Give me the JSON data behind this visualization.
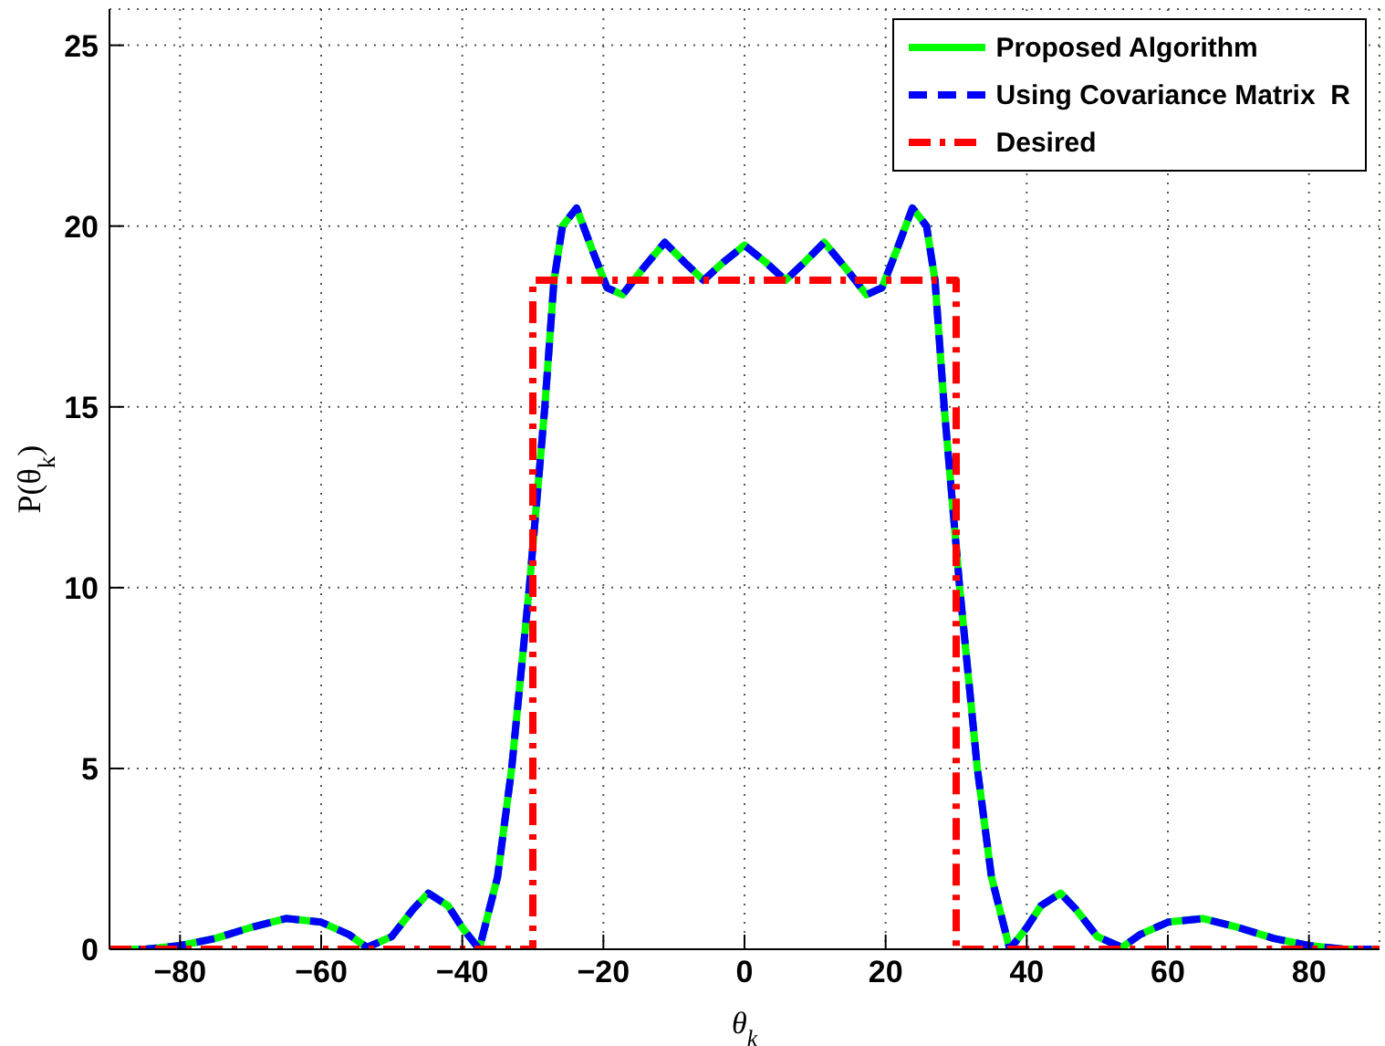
{
  "chart_data": {
    "type": "line",
    "xlabel": "θ$_{k}$",
    "ylabel": "P(θ$_{k}$)",
    "xlim": [
      -90,
      90
    ],
    "xticks": [
      -80,
      -60,
      -40,
      -20,
      0,
      20,
      40,
      60,
      80
    ],
    "ylim": [
      0,
      26
    ],
    "yticks": [
      0,
      5,
      10,
      15,
      20,
      25
    ],
    "grid": true,
    "legend": "top right",
    "marker": "none",
    "series": [
      {
        "name": "Proposed Algorithm",
        "color": "#00ff00",
        "line_style": "solid",
        "x": [
          -90,
          -85,
          -80,
          -75,
          -70,
          -65,
          -60,
          -56,
          -53.5,
          -50,
          -47,
          -44.8,
          -42,
          -40,
          -37.6,
          -35,
          -33,
          -30.5,
          -28.3,
          -27,
          -25.8,
          -23.8,
          -21.5,
          -19.5,
          -17.3,
          -14.5,
          -11.3,
          -8.5,
          -5.8,
          -3,
          0,
          3,
          5.8,
          8.5,
          11.3,
          14.5,
          17.3,
          19.5,
          21.5,
          23.8,
          25.8,
          27,
          28.3,
          30.5,
          33,
          35,
          37.6,
          40,
          42,
          44.8,
          47,
          50,
          53.5,
          56,
          60,
          65,
          70,
          75,
          80,
          85,
          90
        ],
        "values": [
          0,
          0,
          0.1,
          0.3,
          0.6,
          0.85,
          0.75,
          0.4,
          0.05,
          0.35,
          1.1,
          1.55,
          1.2,
          0.6,
          0,
          2,
          5,
          10,
          15,
          18.5,
          20,
          20.5,
          19.3,
          18.3,
          18.1,
          18.8,
          19.55,
          19,
          18.5,
          19,
          19.47,
          19,
          18.5,
          19,
          19.55,
          18.8,
          18.1,
          18.3,
          19.3,
          20.5,
          20,
          18.5,
          15,
          10,
          5,
          2,
          0,
          0.6,
          1.2,
          1.55,
          1.1,
          0.35,
          0.05,
          0.4,
          0.75,
          0.85,
          0.6,
          0.3,
          0.1,
          0,
          0
        ]
      },
      {
        "name": "Using Covariance Matrix  R",
        "color": "#0000ff",
        "line_style": "dashed",
        "x": [
          -90,
          -85,
          -80,
          -75,
          -70,
          -65,
          -60,
          -56,
          -53.5,
          -50,
          -47,
          -44.8,
          -42,
          -40,
          -37.6,
          -35,
          -33,
          -30.5,
          -28.3,
          -27,
          -25.8,
          -23.8,
          -21.5,
          -19.5,
          -17.3,
          -14.5,
          -11.3,
          -8.5,
          -5.8,
          -3,
          0,
          3,
          5.8,
          8.5,
          11.3,
          14.5,
          17.3,
          19.5,
          21.5,
          23.8,
          25.8,
          27,
          28.3,
          30.5,
          33,
          35,
          37.6,
          40,
          42,
          44.8,
          47,
          50,
          53.5,
          56,
          60,
          65,
          70,
          75,
          80,
          85,
          90
        ],
        "values": [
          0,
          0,
          0.1,
          0.3,
          0.6,
          0.85,
          0.75,
          0.4,
          0.05,
          0.35,
          1.1,
          1.55,
          1.2,
          0.6,
          0,
          2,
          5,
          10,
          15,
          18.5,
          20,
          20.5,
          19.3,
          18.3,
          18.1,
          18.8,
          19.55,
          19,
          18.5,
          19,
          19.47,
          19,
          18.5,
          19,
          19.55,
          18.8,
          18.1,
          18.3,
          19.3,
          20.5,
          20,
          18.5,
          15,
          10,
          5,
          2,
          0,
          0.6,
          1.2,
          1.55,
          1.1,
          0.35,
          0.05,
          0.4,
          0.75,
          0.85,
          0.6,
          0.3,
          0.1,
          0,
          0
        ]
      },
      {
        "name": "Desired",
        "color": "#ff0000",
        "line_style": "dashdot",
        "x": [
          -90,
          -30,
          -30,
          30,
          30,
          90
        ],
        "values": [
          0,
          0,
          18.5,
          18.5,
          0,
          0
        ]
      }
    ]
  }
}
